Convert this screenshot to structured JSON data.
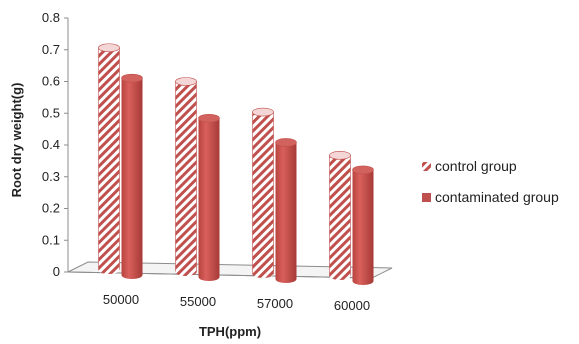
{
  "chart_data": {
    "type": "bar",
    "categories": [
      "50000",
      "55000",
      "57000",
      "60000"
    ],
    "series": [
      {
        "name": "control group",
        "values": [
          0.7,
          0.6,
          0.51,
          0.38
        ],
        "color": "#c0504d",
        "pattern": "diagonal-stripes"
      },
      {
        "name": "contaminated group",
        "values": [
          0.62,
          0.5,
          0.43,
          0.35
        ],
        "color": "#c0504d",
        "pattern": "solid"
      }
    ],
    "title": "",
    "xlabel": "TPH(ppm)",
    "ylabel": "Root dry weight(g)",
    "ylim": [
      0,
      0.8
    ],
    "yticks": [
      "0",
      "0.1",
      "0.2",
      "0.3",
      "0.4",
      "0.5",
      "0.6",
      "0.7",
      "0.8"
    ],
    "grid": false,
    "legend_position": "right",
    "style": "3d-cylinder"
  }
}
